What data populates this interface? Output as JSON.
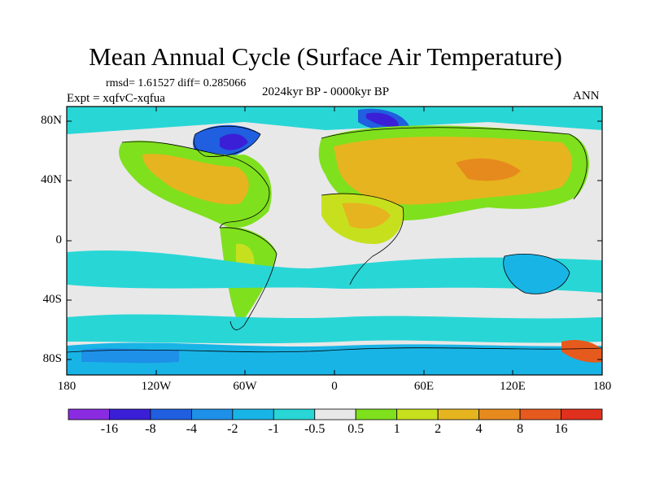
{
  "title": "Mean Annual Cycle (Surface Air Temperature)",
  "stats_line": "rmsd= 1.61527 diff= 0.285066",
  "period_line": "2024kyr BP - 0000kyr BP",
  "expt_line": "Expt = xqfvC-xqfua",
  "season": "ANN",
  "lat_labels": [
    "80N",
    "40N",
    "0",
    "40S",
    "80S"
  ],
  "lon_labels": [
    "180",
    "120W",
    "60W",
    "0",
    "60E",
    "120E",
    "180"
  ],
  "colorbar": {
    "labels": [
      "-16",
      "-8",
      "-4",
      "-2",
      "-1",
      "-0.5",
      "0.5",
      "1",
      "2",
      "4",
      "8",
      "16"
    ],
    "colors": [
      "#8a2be2",
      "#3a1fd6",
      "#1f5fe0",
      "#1e90e8",
      "#19b4e6",
      "#29d6d6",
      "#e8e8e8",
      "#7fe01e",
      "#c7e01e",
      "#e6b41e",
      "#e68a1e",
      "#e65a1e",
      "#e0301e"
    ]
  }
}
